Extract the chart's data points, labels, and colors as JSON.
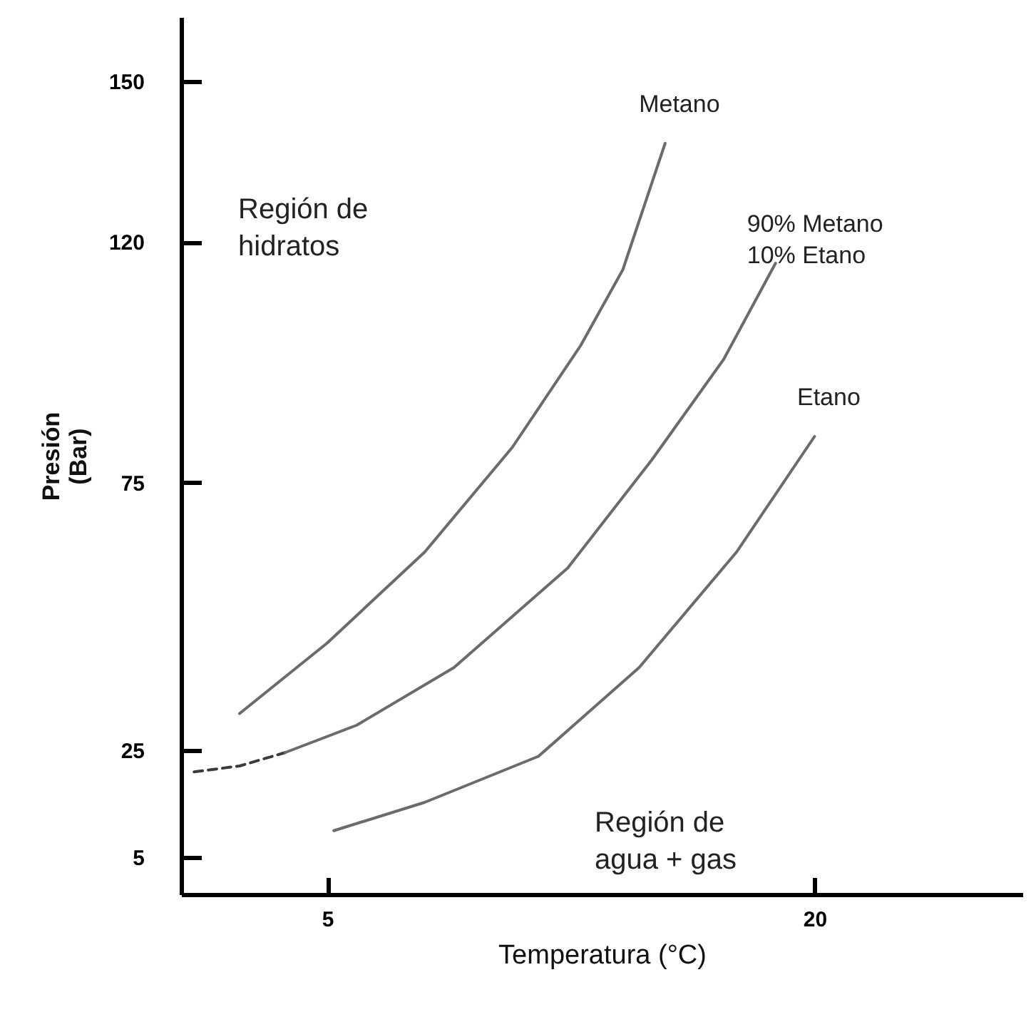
{
  "chart_data": {
    "type": "line",
    "xlabel": "Temperatura (°C)",
    "ylabel": "Presión\n(Bar)",
    "xlim": [
      0.5,
      26.4
    ],
    "ylim": [
      -2,
      162
    ],
    "xticks": [
      5,
      20
    ],
    "yticks": [
      5,
      25,
      75,
      120,
      150
    ],
    "marker": "none",
    "series": [
      {
        "name": "Metano",
        "color": "#6b6b6b",
        "x": [
          2.3,
          5,
          8.0,
          10.7,
          12.8,
          14.1,
          15.4
        ],
        "values": [
          31.8,
          45,
          62,
          81.6,
          100.6,
          114.8,
          138.4
        ]
      },
      {
        "color": "#3a3a3a",
        "line_style": "dashed",
        "x": [
          0.9,
          2.3,
          3.7
        ],
        "values": [
          20.9,
          22,
          24.5
        ]
      },
      {
        "name": "90% Metano\n10% Etano",
        "color": "#6b6b6b",
        "x": [
          3.7,
          5.9,
          8.9,
          12.4,
          15,
          17.2,
          18.8
        ],
        "values": [
          24.5,
          29.6,
          40.4,
          59,
          79.3,
          98,
          116
        ]
      },
      {
        "name": "Etano",
        "color": "#6b6b6b",
        "x": [
          5.2,
          8.0,
          11.5,
          14.6,
          17.6,
          20
        ],
        "values": [
          9.9,
          15.2,
          23.8,
          40.4,
          62,
          83.6
        ]
      }
    ],
    "annotations": [
      "Región de\nhidratos",
      "Región de\nagua + gas"
    ]
  }
}
